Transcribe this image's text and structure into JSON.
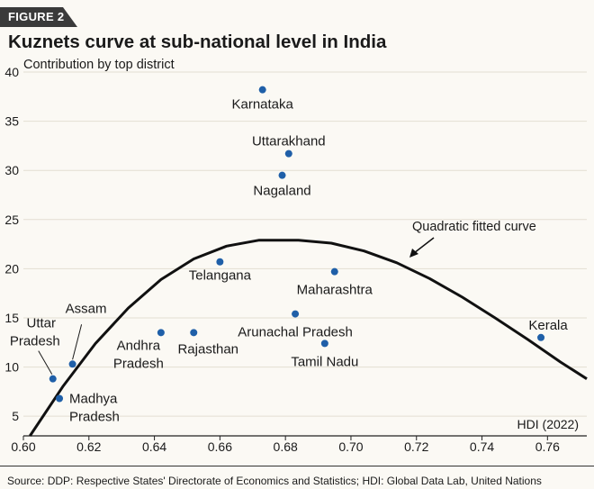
{
  "figure": {
    "badge": "FIGURE 2",
    "title": "Kuznets curve at sub-national level in India",
    "source": "Source: DDP: Respective States' Directorate of Economics and Statistics; HDI: Global Data Lab, United Nations"
  },
  "chart_data": {
    "type": "scatter",
    "title": "Kuznets curve at sub-national level in India",
    "xlabel": "HDI (2022)",
    "ylabel": "Contribution by top district",
    "xlim": [
      0.6,
      0.772
    ],
    "ylim": [
      3,
      40
    ],
    "xticks": [
      "0.60",
      "0.62",
      "0.64",
      "0.66",
      "0.68",
      "0.70",
      "0.72",
      "0.74",
      "0.76"
    ],
    "xtick_values": [
      0.6,
      0.62,
      0.64,
      0.66,
      0.68,
      0.7,
      0.72,
      0.74,
      0.76
    ],
    "yticks": [
      "5",
      "10",
      "15",
      "20",
      "25",
      "30",
      "35",
      "40"
    ],
    "ytick_values": [
      5,
      10,
      15,
      20,
      25,
      30,
      35,
      40
    ],
    "grid": "horizontal",
    "point_color": "#1f5fa8",
    "curve_color": "#111111",
    "points": [
      {
        "label": "Karnataka",
        "x": 0.673,
        "y": 38.2
      },
      {
        "label": "Uttarakhand",
        "x": 0.681,
        "y": 31.7
      },
      {
        "label": "Nagaland",
        "x": 0.679,
        "y": 29.5
      },
      {
        "label": "Telangana",
        "x": 0.66,
        "y": 20.7
      },
      {
        "label": "Maharashtra",
        "x": 0.695,
        "y": 19.7
      },
      {
        "label": "Arunachal Pradesh",
        "x": 0.683,
        "y": 15.4
      },
      {
        "label": "Tamil Nadu",
        "x": 0.692,
        "y": 12.4
      },
      {
        "label": "Kerala",
        "x": 0.758,
        "y": 13.0
      },
      {
        "label": "Andhra Pradesh",
        "x": 0.642,
        "y": 13.5
      },
      {
        "label": "Rajasthan",
        "x": 0.652,
        "y": 13.5
      },
      {
        "label": "Assam",
        "x": 0.615,
        "y": 10.3
      },
      {
        "label": "Uttar Pradesh",
        "x": 0.609,
        "y": 8.8
      },
      {
        "label": "Madhya Pradesh",
        "x": 0.611,
        "y": 6.8
      }
    ],
    "curve": {
      "name": "Quadratic fitted curve",
      "x": [
        0.602,
        0.612,
        0.622,
        0.632,
        0.642,
        0.652,
        0.662,
        0.672,
        0.684,
        0.694,
        0.704,
        0.714,
        0.724,
        0.734,
        0.744,
        0.754,
        0.764,
        0.772
      ],
      "y": [
        3.0,
        8.0,
        12.4,
        16.0,
        18.9,
        21.0,
        22.3,
        22.9,
        22.9,
        22.6,
        21.8,
        20.6,
        19.0,
        17.1,
        15.0,
        12.8,
        10.5,
        8.8
      ]
    }
  }
}
